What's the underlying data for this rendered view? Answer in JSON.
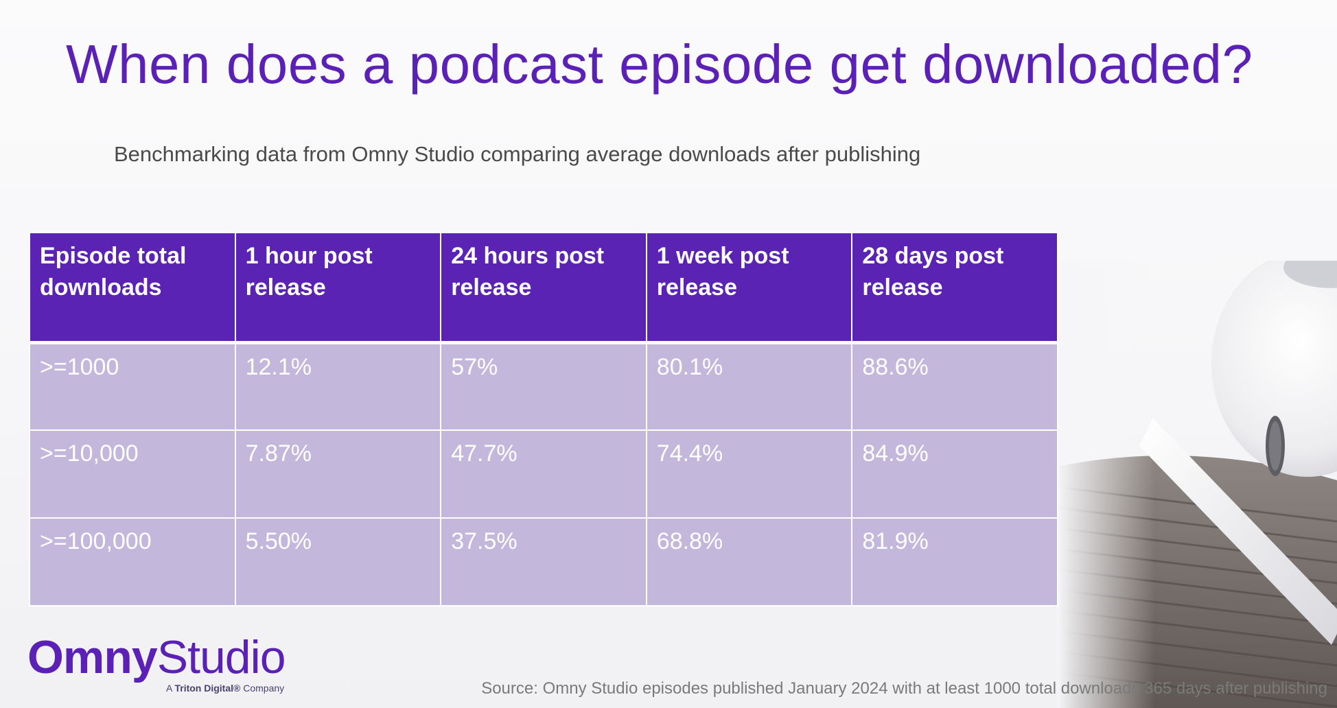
{
  "slide": {
    "title": "When does a podcast episode get downloaded?",
    "subtitle": "Benchmarking data from Omny Studio comparing average downloads after publishing",
    "table": {
      "headers": [
        "Episode total downloads",
        "1 hour post release",
        "24 hours post release",
        "1 week post release",
        "28 days post release"
      ],
      "rows": [
        [
          ">=1000",
          "12.1%",
          "57%",
          "80.1%",
          "88.6%"
        ],
        [
          ">=10,000",
          "7.87%",
          "47.7%",
          "74.4%",
          "84.9%"
        ],
        [
          ">=100,000",
          "5.50%",
          "37.5%",
          "68.8%",
          "81.9%"
        ]
      ]
    },
    "logo": {
      "omny": "Omny",
      "studio": "Studio",
      "tagline_prefix": "A",
      "tagline_brand": "Triton Digital®",
      "tagline_suffix": "Company"
    },
    "source": "Source:  Omny Studio episodes published January 2024 with at least 1000 total downloads 365 days after publishing"
  },
  "colors": {
    "accent": "#5b21b6",
    "header_bg": "#5b23b3",
    "cell_bg": "#c3b7dc",
    "text_muted": "#7a7a7a"
  },
  "icons": {
    "photo": "earbud-photo"
  }
}
